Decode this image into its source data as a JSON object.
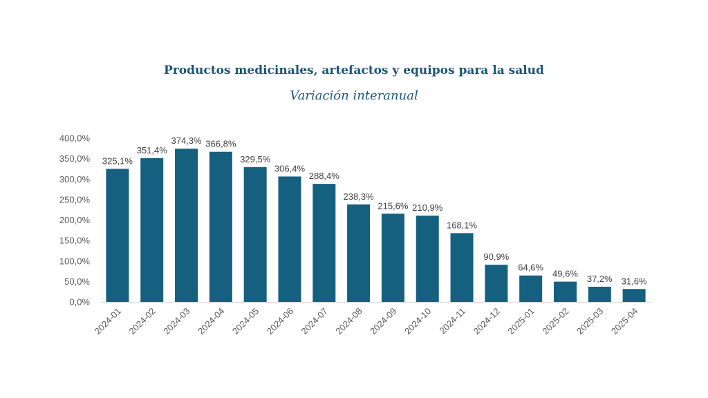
{
  "chart_data": {
    "type": "bar",
    "title": "Productos medicinales, artefactos y equipos para la salud",
    "subtitle": "Variación interanual",
    "xlabel": "",
    "ylabel": "",
    "categories": [
      "2024-01",
      "2024-02",
      "2024-03",
      "2024-04",
      "2024-05",
      "2024-06",
      "2024-07",
      "2024-08",
      "2024-09",
      "2024-10",
      "2024-11",
      "2024-12",
      "2025-01",
      "2025-02",
      "2025-03",
      "2025-04"
    ],
    "values": [
      325.1,
      351.4,
      374.3,
      366.8,
      329.5,
      306.4,
      288.4,
      238.3,
      215.6,
      210.9,
      168.1,
      90.9,
      64.6,
      49.6,
      37.2,
      31.6
    ],
    "data_labels": [
      "325,1%",
      "351,4%",
      "374,3%",
      "366,8%",
      "329,5%",
      "306,4%",
      "288,4%",
      "238,3%",
      "215,6%",
      "210,9%",
      "168,1%",
      "90,9%",
      "64,6%",
      "49,6%",
      "37,2%",
      "31,6%"
    ],
    "y_ticks": [
      0,
      50,
      100,
      150,
      200,
      250,
      300,
      350,
      400
    ],
    "y_tick_labels": [
      "0,0%",
      "50,0%",
      "100,0%",
      "150,0%",
      "200,0%",
      "250,0%",
      "300,0%",
      "350,0%",
      "400,0%"
    ],
    "ylim": [
      0,
      400
    ],
    "grid": false,
    "legend": "none",
    "bar_color": "#16607f",
    "title_color": "#1b5577"
  }
}
